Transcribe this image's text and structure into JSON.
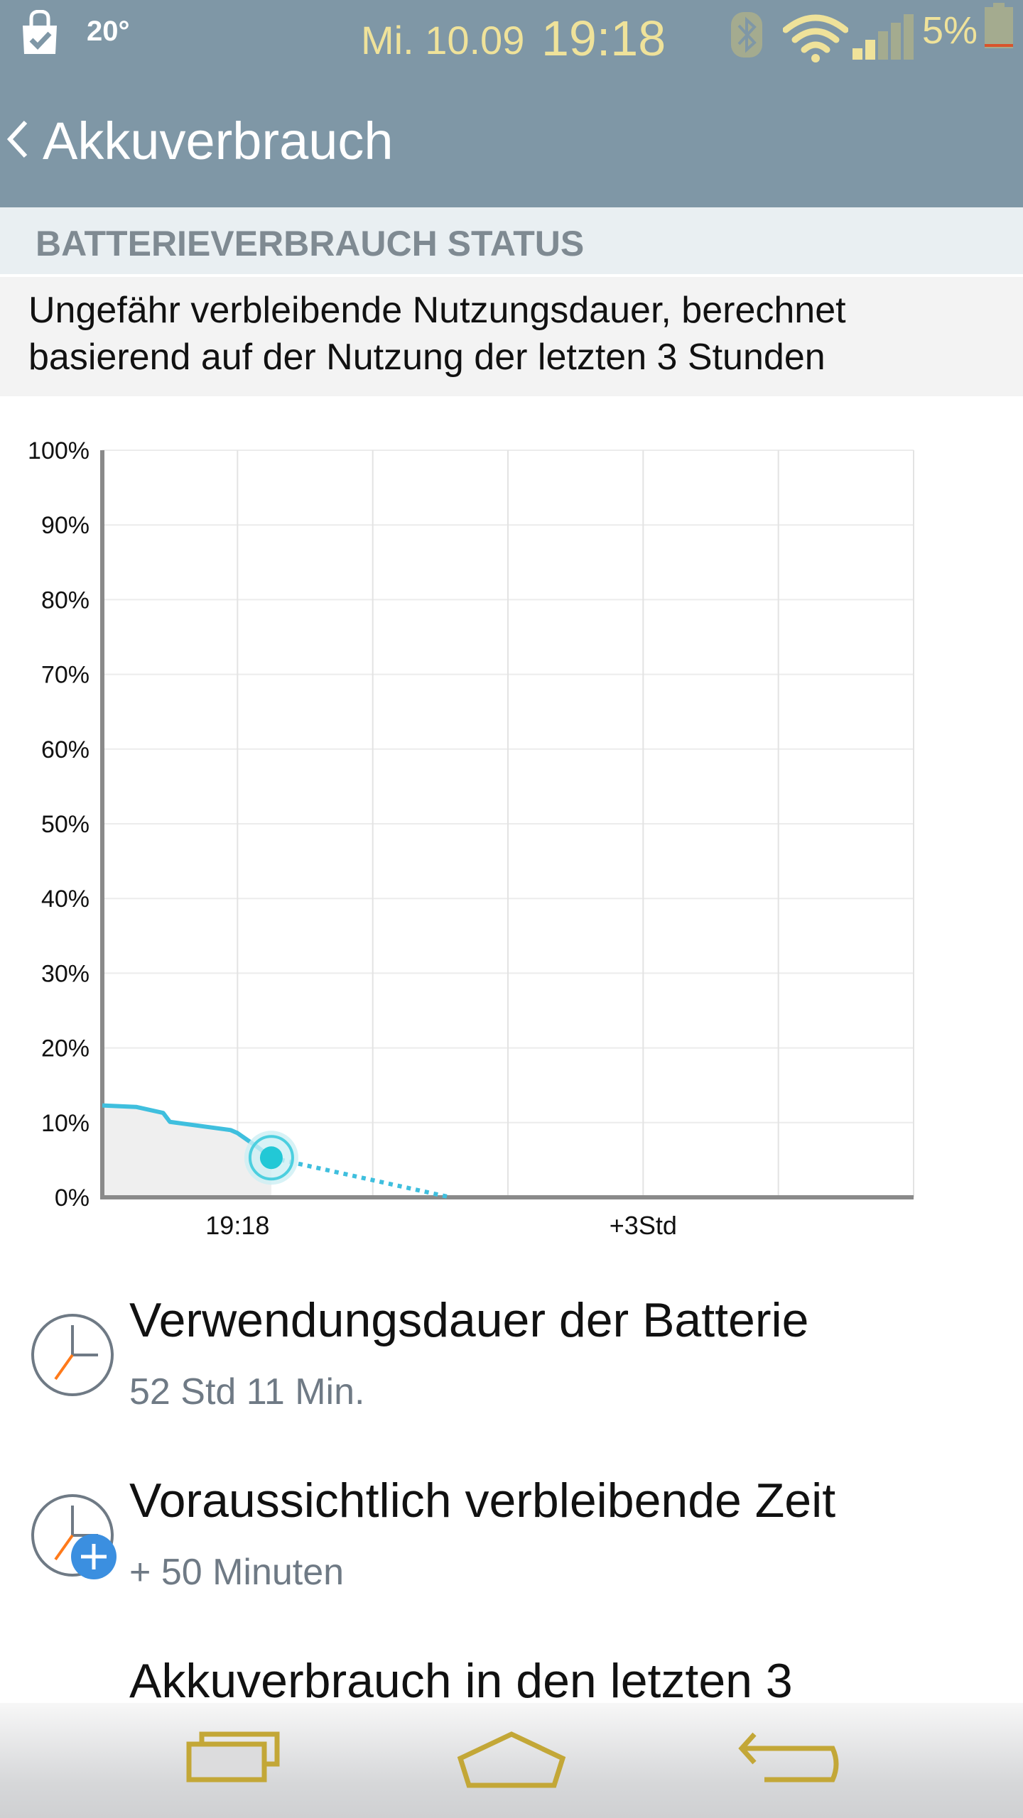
{
  "status_bar": {
    "temperature": "20°",
    "date": "Mi. 10.09",
    "time": "19:18",
    "battery_percent": "5%",
    "icons": [
      "shopping-bag-icon",
      "bluetooth-icon",
      "wifi-icon",
      "signal-icon",
      "battery-icon"
    ],
    "colors": {
      "background": "#7f97a6",
      "text_accent": "#efe29a"
    }
  },
  "action_bar": {
    "title": "Akkuverbrauch",
    "back_icon": "chevron-left-icon"
  },
  "section": {
    "header": "BATTERIEVERBRAUCH STATUS",
    "description": "Ungefähr verbleibende Nutzungsdauer, berechnet basierend auf der Nutzung der letzten 3 Stunden"
  },
  "chart_data": {
    "type": "line",
    "title": "",
    "xlabel": "",
    "ylabel": "",
    "ylim": [
      0,
      100
    ],
    "y_ticks": [
      "0%",
      "10%",
      "20%",
      "30%",
      "40%",
      "50%",
      "60%",
      "70%",
      "80%",
      "90%",
      "100%"
    ],
    "x_ticks": [
      "19:18",
      "+3Std"
    ],
    "grid": true,
    "series": [
      {
        "style": "solid",
        "color": "#3fbfde",
        "points": [
          [
            0,
            12.3
          ],
          [
            0.25,
            12.1
          ],
          [
            0.45,
            11.3
          ],
          [
            0.5,
            10.1
          ],
          [
            0.95,
            9.0
          ],
          [
            1.0,
            8.6
          ],
          [
            1.15,
            6.7
          ],
          [
            1.25,
            5.3
          ]
        ]
      },
      {
        "style": "dotted",
        "color": "#3fbfde",
        "points": [
          [
            1.25,
            5.3
          ],
          [
            2.55,
            0.1
          ]
        ]
      }
    ],
    "current_point": [
      1.25,
      5.3
    ]
  },
  "list": [
    {
      "title": "Verwendungsdauer der Batterie",
      "subtitle": "52 Std 11 Min.",
      "icon": "clock-icon"
    },
    {
      "title": "Voraussichtlich verbleibende Zeit",
      "subtitle": "+ 50 Minuten",
      "icon": "clock-plus-icon"
    },
    {
      "title": "Akkuverbrauch in den letzten 3"
    }
  ],
  "nav_bar": {
    "icons": [
      "recent-apps-icon",
      "home-icon",
      "back-icon"
    ],
    "color": "#c3a737"
  }
}
